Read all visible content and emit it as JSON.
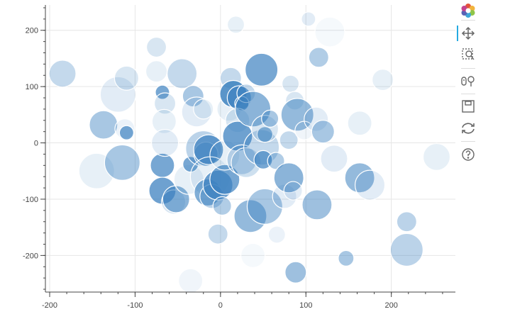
{
  "toolbar": {
    "logo": "bokeh-logo-icon",
    "tools": [
      {
        "name": "pan-tool-icon",
        "active": true
      },
      {
        "name": "box-zoom-tool-icon",
        "active": false
      },
      {
        "name": "wheel-zoom-tool-icon",
        "active": false
      },
      {
        "name": "save-tool-icon",
        "active": false
      },
      {
        "name": "reset-tool-icon",
        "active": false
      },
      {
        "name": "help-tool-icon",
        "active": false
      }
    ]
  },
  "colors": {
    "bubble": "#3d82c0",
    "grid": "#e6e6e6",
    "axis": "#444444",
    "bubble_outline": "#ffffff"
  },
  "chart_data": {
    "type": "scatter",
    "title": "",
    "xlabel": "",
    "ylabel": "",
    "xlim": [
      -205,
      275
    ],
    "ylim": [
      -265,
      245
    ],
    "grid": true,
    "x_ticks": [
      -200,
      -100,
      0,
      100,
      200
    ],
    "y_ticks": [
      -200,
      -100,
      0,
      100,
      200
    ],
    "x_tick_labels": [
      "-200",
      "-100",
      "0",
      "100",
      "200"
    ],
    "y_tick_labels": [
      "-200",
      "-100",
      "0",
      "100",
      "200"
    ],
    "points": [
      {
        "x": -185,
        "y": 123,
        "size": 19,
        "alpha": 0.3
      },
      {
        "x": -145,
        "y": -50,
        "size": 25,
        "alpha": 0.12
      },
      {
        "x": -137,
        "y": 32,
        "size": 20,
        "alpha": 0.45
      },
      {
        "x": -120,
        "y": 86,
        "size": 25,
        "alpha": 0.15
      },
      {
        "x": -115,
        "y": -35,
        "size": 25,
        "alpha": 0.45
      },
      {
        "x": -112,
        "y": 25,
        "size": 14,
        "alpha": 0.1
      },
      {
        "x": -110,
        "y": 115,
        "size": 17,
        "alpha": 0.2
      },
      {
        "x": -110,
        "y": 18,
        "size": 10,
        "alpha": 0.7
      },
      {
        "x": -75,
        "y": 170,
        "size": 14,
        "alpha": 0.2
      },
      {
        "x": -75,
        "y": 127,
        "size": 15,
        "alpha": 0.12
      },
      {
        "x": -68,
        "y": 90,
        "size": 10,
        "alpha": 0.7
      },
      {
        "x": -68,
        "y": -40,
        "size": 17,
        "alpha": 0.7
      },
      {
        "x": -68,
        "y": -85,
        "size": 19,
        "alpha": 0.75
      },
      {
        "x": -65,
        "y": 70,
        "size": 15,
        "alpha": 0.2
      },
      {
        "x": -66,
        "y": 38,
        "size": 17,
        "alpha": 0.12
      },
      {
        "x": -65,
        "y": 0,
        "size": 19,
        "alpha": 0.15
      },
      {
        "x": -55,
        "y": -105,
        "size": 17,
        "alpha": 0.2
      },
      {
        "x": -52,
        "y": -100,
        "size": 19,
        "alpha": 0.6
      },
      {
        "x": -45,
        "y": 123,
        "size": 21,
        "alpha": 0.3
      },
      {
        "x": -37,
        "y": -65,
        "size": 21,
        "alpha": 0.12
      },
      {
        "x": -35,
        "y": -38,
        "size": 11,
        "alpha": 0.7
      },
      {
        "x": -32,
        "y": 83,
        "size": 15,
        "alpha": 0.45
      },
      {
        "x": -28,
        "y": 55,
        "size": 21,
        "alpha": 0.15
      },
      {
        "x": -20,
        "y": 60,
        "size": 14,
        "alpha": 0.12
      },
      {
        "x": -35,
        "y": -245,
        "size": 17,
        "alpha": 0.08
      },
      {
        "x": -20,
        "y": -10,
        "size": 25,
        "alpha": 0.35
      },
      {
        "x": -17,
        "y": -20,
        "size": 17,
        "alpha": 0.45
      },
      {
        "x": -14,
        "y": -12,
        "size": 21,
        "alpha": 0.75
      },
      {
        "x": -12,
        "y": -60,
        "size": 28,
        "alpha": 0.12
      },
      {
        "x": -15,
        "y": -88,
        "size": 19,
        "alpha": 0.65
      },
      {
        "x": -10,
        "y": -95,
        "size": 17,
        "alpha": 0.35
      },
      {
        "x": -3,
        "y": -75,
        "size": 21,
        "alpha": 0.75
      },
      {
        "x": 5,
        "y": -65,
        "size": 21,
        "alpha": 0.7
      },
      {
        "x": 5,
        "y": -22,
        "size": 21,
        "alpha": 0.12
      },
      {
        "x": 2,
        "y": -112,
        "size": 13,
        "alpha": 0.4
      },
      {
        "x": -3,
        "y": -162,
        "size": 14,
        "alpha": 0.3
      },
      {
        "x": 10,
        "y": 60,
        "size": 17,
        "alpha": 0.12
      },
      {
        "x": 12,
        "y": 115,
        "size": 15,
        "alpha": 0.3
      },
      {
        "x": 18,
        "y": 210,
        "size": 12,
        "alpha": 0.12
      },
      {
        "x": 15,
        "y": 87,
        "size": 19,
        "alpha": 0.85
      },
      {
        "x": 22,
        "y": 80,
        "size": 17,
        "alpha": 0.7
      },
      {
        "x": 25,
        "y": 70,
        "size": 10,
        "alpha": 0.8
      },
      {
        "x": 20,
        "y": 40,
        "size": 17,
        "alpha": 0.2
      },
      {
        "x": 20,
        "y": 12,
        "size": 21,
        "alpha": 0.75
      },
      {
        "x": 25,
        "y": -30,
        "size": 21,
        "alpha": 0.3
      },
      {
        "x": 30,
        "y": -35,
        "size": 21,
        "alpha": 0.25
      },
      {
        "x": 30,
        "y": 88,
        "size": 13,
        "alpha": 0.3
      },
      {
        "x": 38,
        "y": 60,
        "size": 25,
        "alpha": 0.6
      },
      {
        "x": 48,
        "y": -8,
        "size": 25,
        "alpha": 0.3
      },
      {
        "x": 48,
        "y": 130,
        "size": 23,
        "alpha": 0.7
      },
      {
        "x": 50,
        "y": -30,
        "size": 13,
        "alpha": 0.7
      },
      {
        "x": 52,
        "y": 15,
        "size": 11,
        "alpha": 0.6
      },
      {
        "x": 52,
        "y": 25,
        "size": 19,
        "alpha": 0.2
      },
      {
        "x": 35,
        "y": -130,
        "size": 23,
        "alpha": 0.55
      },
      {
        "x": 52,
        "y": -113,
        "size": 25,
        "alpha": 0.45
      },
      {
        "x": 38,
        "y": -200,
        "size": 17,
        "alpha": 0.05
      },
      {
        "x": 58,
        "y": 43,
        "size": 12,
        "alpha": 0.45
      },
      {
        "x": 65,
        "y": -32,
        "size": 12,
        "alpha": 0.4
      },
      {
        "x": 66,
        "y": -163,
        "size": 12,
        "alpha": 0.1
      },
      {
        "x": 75,
        "y": -95,
        "size": 17,
        "alpha": 0.15
      },
      {
        "x": 80,
        "y": -62,
        "size": 21,
        "alpha": 0.6
      },
      {
        "x": 80,
        "y": 5,
        "size": 13,
        "alpha": 0.3
      },
      {
        "x": 82,
        "y": 105,
        "size": 12,
        "alpha": 0.2
      },
      {
        "x": 85,
        "y": -85,
        "size": 13,
        "alpha": 0.15
      },
      {
        "x": 87,
        "y": 75,
        "size": 13,
        "alpha": 0.2
      },
      {
        "x": 88,
        "y": -230,
        "size": 15,
        "alpha": 0.5
      },
      {
        "x": 90,
        "y": 50,
        "size": 23,
        "alpha": 0.55
      },
      {
        "x": 98,
        "y": 22,
        "size": 13,
        "alpha": 0.08
      },
      {
        "x": 103,
        "y": 220,
        "size": 10,
        "alpha": 0.15
      },
      {
        "x": 112,
        "y": 42,
        "size": 17,
        "alpha": 0.15
      },
      {
        "x": 113,
        "y": -110,
        "size": 21,
        "alpha": 0.5
      },
      {
        "x": 115,
        "y": 152,
        "size": 14,
        "alpha": 0.4
      },
      {
        "x": 120,
        "y": 20,
        "size": 16,
        "alpha": 0.45
      },
      {
        "x": 128,
        "y": 197,
        "size": 21,
        "alpha": 0.05
      },
      {
        "x": 133,
        "y": -28,
        "size": 19,
        "alpha": 0.15
      },
      {
        "x": 147,
        "y": -205,
        "size": 11,
        "alpha": 0.45
      },
      {
        "x": 163,
        "y": -62,
        "size": 21,
        "alpha": 0.55
      },
      {
        "x": 163,
        "y": 35,
        "size": 17,
        "alpha": 0.12
      },
      {
        "x": 175,
        "y": -75,
        "size": 21,
        "alpha": 0.15
      },
      {
        "x": 190,
        "y": 112,
        "size": 15,
        "alpha": 0.12
      },
      {
        "x": 218,
        "y": -140,
        "size": 14,
        "alpha": 0.35
      },
      {
        "x": 218,
        "y": -190,
        "size": 23,
        "alpha": 0.35
      },
      {
        "x": 253,
        "y": -25,
        "size": 19,
        "alpha": 0.12
      }
    ]
  }
}
